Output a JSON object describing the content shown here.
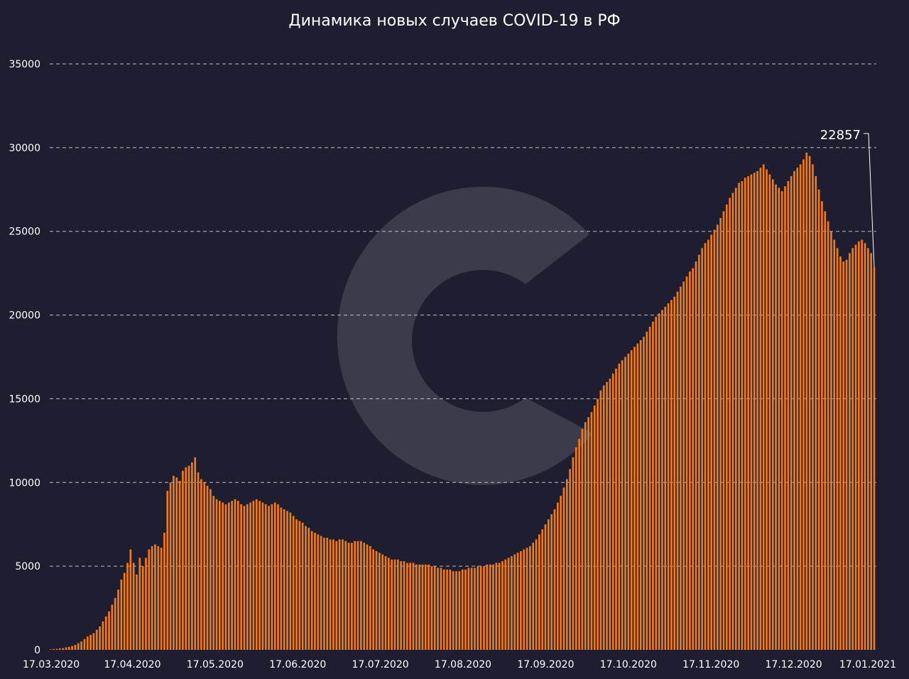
{
  "chart_data": {
    "type": "bar",
    "title": "Динамика новых случаев COVID-19 в РФ",
    "xlabel": "",
    "ylabel": "",
    "ylim": [
      0,
      35000
    ],
    "grid": true,
    "grid_style": "dashed horizontal",
    "bar_color": "#f07a1e",
    "bar_edge_color": "#a84a10",
    "background_color": "#1f1e31",
    "yticks": [
      0,
      5000,
      10000,
      15000,
      20000,
      25000,
      30000,
      35000
    ],
    "xtick_labels": [
      "17.03.2020",
      "17.04.2020",
      "17.05.2020",
      "17.06.2020",
      "17.07.2020",
      "17.08.2020",
      "17.09.2020",
      "17.10.2020",
      "17.11.2020",
      "17.12.2020",
      "17.01.2021"
    ],
    "date_start": "17.03.2020",
    "date_end": "17.01.2021",
    "annotation": {
      "label": "22857",
      "value": 22857,
      "date": "17.01.2021"
    },
    "values": [
      30,
      50,
      60,
      90,
      100,
      150,
      180,
      230,
      300,
      400,
      500,
      650,
      800,
      900,
      1000,
      1200,
      1400,
      1700,
      2000,
      2300,
      2700,
      3100,
      3600,
      4200,
      4600,
      5200,
      6000,
      5200,
      4500,
      5500,
      5000,
      5500,
      6000,
      6200,
      6300,
      6200,
      6100,
      7000,
      9500,
      10000,
      10400,
      10300,
      10100,
      10700,
      10900,
      11000,
      11200,
      11500,
      10600,
      10200,
      10000,
      9800,
      9600,
      9200,
      9000,
      8900,
      8800,
      8700,
      8800,
      8900,
      9000,
      8900,
      8700,
      8600,
      8700,
      8800,
      8900,
      9000,
      8900,
      8800,
      8700,
      8600,
      8700,
      8800,
      8700,
      8500,
      8400,
      8300,
      8200,
      8000,
      7800,
      7700,
      7600,
      7400,
      7300,
      7100,
      7000,
      6900,
      6800,
      6700,
      6700,
      6600,
      6600,
      6500,
      6600,
      6600,
      6500,
      6400,
      6400,
      6500,
      6500,
      6500,
      6400,
      6300,
      6200,
      6000,
      5900,
      5800,
      5700,
      5600,
      5500,
      5400,
      5400,
      5400,
      5300,
      5300,
      5200,
      5200,
      5200,
      5100,
      5100,
      5100,
      5100,
      5100,
      5000,
      5000,
      4900,
      4900,
      4800,
      4800,
      4800,
      4700,
      4700,
      4700,
      4800,
      4800,
      4900,
      4900,
      4900,
      5000,
      5000,
      5000,
      5100,
      5100,
      5100,
      5200,
      5200,
      5300,
      5400,
      5500,
      5600,
      5700,
      5800,
      5900,
      6000,
      6100,
      6200,
      6400,
      6600,
      6900,
      7200,
      7500,
      7800,
      8100,
      8400,
      8800,
      9200,
      9700,
      10200,
      10800,
      11500,
      12100,
      12600,
      13200,
      13600,
      13900,
      14200,
      14600,
      15000,
      15500,
      15800,
      16000,
      16200,
      16500,
      16800,
      17100,
      17300,
      17500,
      17700,
      17900,
      18100,
      18300,
      18500,
      18700,
      19000,
      19300,
      19600,
      19900,
      20100,
      20300,
      20500,
      20700,
      20900,
      21100,
      21400,
      21700,
      22000,
      22300,
      22600,
      22800,
      23200,
      23600,
      24000,
      24300,
      24500,
      24800,
      25100,
      25400,
      25800,
      26200,
      26600,
      27000,
      27300,
      27600,
      27900,
      28000,
      28200,
      28300,
      28400,
      28500,
      28600,
      28800,
      29000,
      28700,
      28400,
      28100,
      27800,
      27600,
      27400,
      27700,
      28000,
      28300,
      28600,
      28800,
      29000,
      29300,
      29700,
      29500,
      29000,
      28300,
      27500,
      26800,
      26200,
      25600,
      25000,
      24500,
      24000,
      23500,
      23200,
      23300,
      23700,
      24000,
      24200,
      24400,
      24500,
      24300,
      24000,
      23700,
      22857
    ]
  }
}
